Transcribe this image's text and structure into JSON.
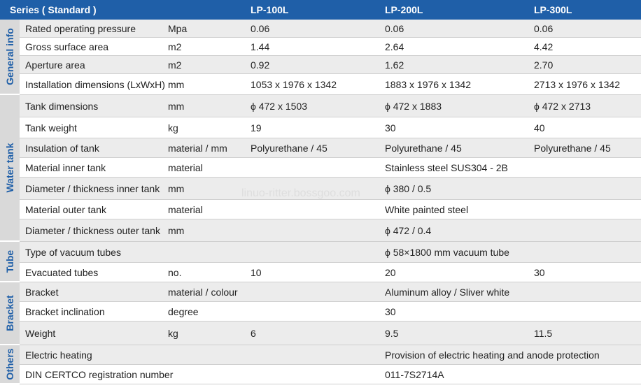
{
  "header": {
    "series": "Series ( Standard )",
    "models": [
      "LP-100L",
      "LP-200L",
      "LP-300L"
    ]
  },
  "sections": [
    {
      "label": "General info",
      "rows": [
        {
          "name": "Rated operating pressure",
          "unit": "Mpa",
          "v1": "0.06",
          "v2": "0.06",
          "v3": "0.06"
        },
        {
          "name": "Gross surface area",
          "unit": "m2",
          "v1": "1.44",
          "v2": "2.64",
          "v3": "4.42"
        },
        {
          "name": "Aperture area",
          "unit": "m2",
          "v1": "0.92",
          "v2": "1.62",
          "v3": "2.70"
        },
        {
          "name": "Installation dimensions (LxWxH)",
          "unit": "mm",
          "v1": "1053 x 1976 x 1342",
          "v2": "1883 x 1976 x 1342",
          "v3": "2713 x 1976 x 1342"
        }
      ]
    },
    {
      "label": "Water tank",
      "rows": [
        {
          "name": "Tank dimensions",
          "unit": "mm",
          "v1": "ϕ 472 x 1503",
          "v2": "ϕ 472 x 1883",
          "v3": "ϕ 472 x 2713"
        },
        {
          "name": "Tank weight",
          "unit": "kg",
          "v1": "19",
          "v2": "30",
          "v3": "40"
        },
        {
          "name": "Insulation of tank",
          "unit": "material / mm",
          "v1": "Polyurethane / 45",
          "v2": "Polyurethane / 45",
          "v3": "Polyurethane / 45"
        },
        {
          "name": "Material inner tank",
          "unit": "material",
          "v1": "",
          "v2": "Stainless steel SUS304 - 2B",
          "v3": ""
        },
        {
          "name": "Diameter / thickness inner tank",
          "unit": "mm",
          "v1": "",
          "v2": "ϕ 380 / 0.5",
          "v3": ""
        },
        {
          "name": "Material outer tank",
          "unit": "material",
          "v1": "",
          "v2": "White painted steel",
          "v3": ""
        },
        {
          "name": "Diameter / thickness outer tank",
          "unit": "mm",
          "v1": "",
          "v2": "ϕ 472 / 0.4",
          "v3": ""
        }
      ]
    },
    {
      "label": "Tube",
      "rows": [
        {
          "name": "Type of vacuum tubes",
          "unit": "",
          "v1": "",
          "v2": "ϕ 58×1800 mm vacuum tube",
          "v3": ""
        },
        {
          "name": "Evacuated tubes",
          "unit": "no.",
          "v1": "10",
          "v2": "20",
          "v3": "30"
        }
      ]
    },
    {
      "label": "Bracket",
      "rows": [
        {
          "name": "Bracket",
          "unit": "material / colour",
          "v1": "",
          "v2": "Aluminum alloy  / Sliver white",
          "v3": ""
        },
        {
          "name": "Bracket inclination",
          "unit": "degree",
          "v1": "",
          "v2": "30",
          "v3": ""
        },
        {
          "name": "Weight",
          "unit": "kg",
          "v1": "6",
          "v2": "9.5",
          "v3": "11.5"
        }
      ]
    },
    {
      "label": "Others",
      "rows": [
        {
          "name": "Electric heating",
          "unit": "",
          "v1": "",
          "v2": "Provision of electric heating and anode protection",
          "v3": ""
        },
        {
          "name": "DIN CERTCO registration number",
          "unit": "",
          "v1": "",
          "v2": "011-7S2714A",
          "v3": ""
        }
      ]
    }
  ],
  "watermark": "linuo-ritter.bossgoo.com",
  "colors": {
    "header_bg": "#1f5fa8",
    "side_bg": "#d9d9d9",
    "accent_text": "#1f5fa8",
    "row_shade": "#ececec"
  }
}
